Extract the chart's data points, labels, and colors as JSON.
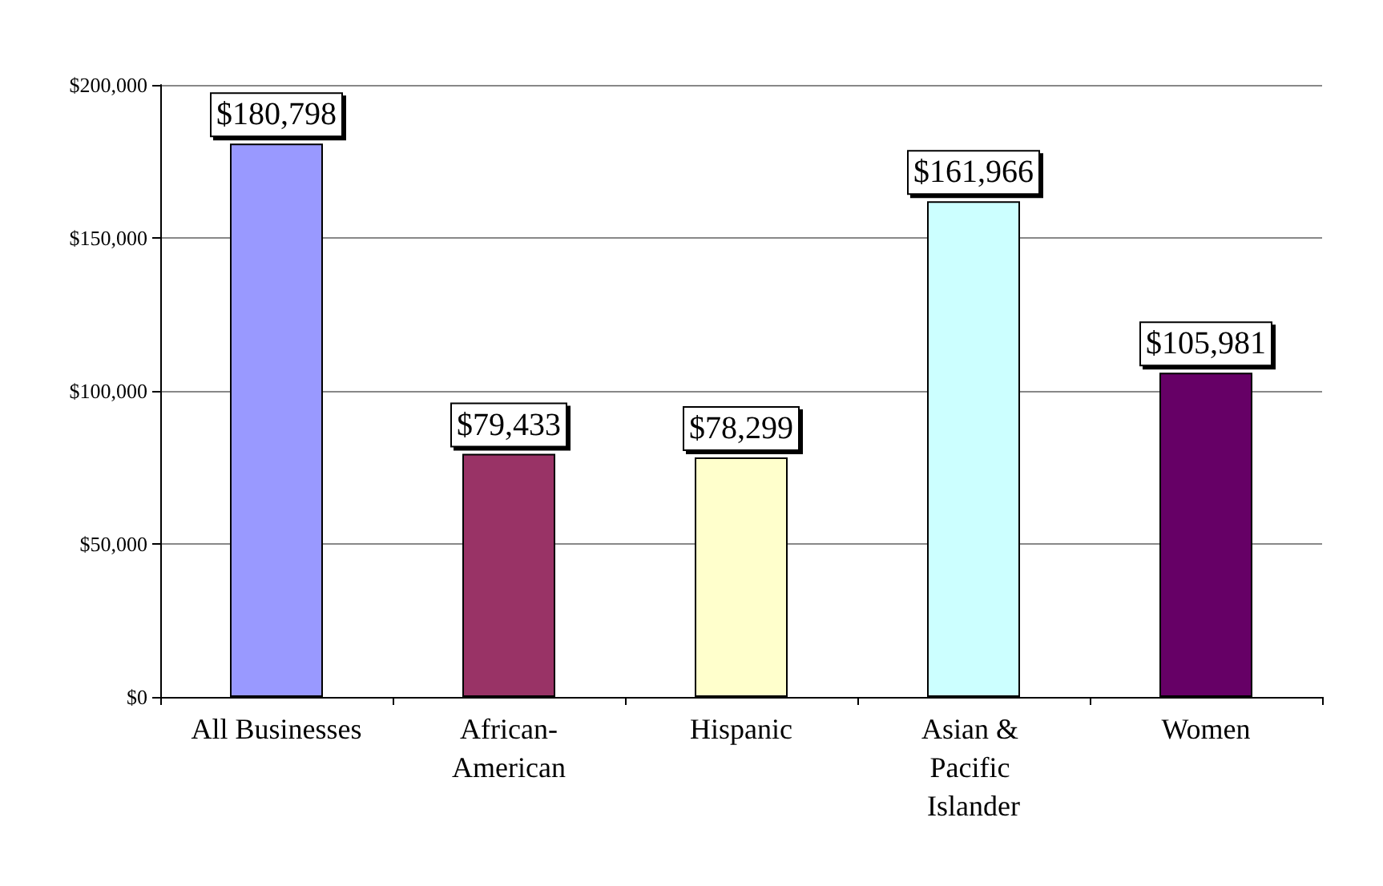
{
  "chart_data": {
    "type": "bar",
    "categories": [
      "All Businesses",
      "African-American",
      "Hispanic",
      "Asian & Pacific Islander",
      "Women"
    ],
    "values": [
      180798,
      79433,
      78299,
      161966,
      105981
    ],
    "colors": [
      "#9999ff",
      "#993366",
      "#ffffcc",
      "#ccffff",
      "#660066"
    ],
    "value_labels": [
      "$180,798",
      "$79,433",
      "$78,299",
      "$161,966",
      "$105,981"
    ],
    "ylim": [
      0,
      200000
    ],
    "yticks": [
      {
        "value": 0,
        "label": "$0"
      },
      {
        "value": 50000,
        "label": "$50,000"
      },
      {
        "value": 100000,
        "label": "$100,000"
      },
      {
        "value": 150000,
        "label": "$150,000"
      },
      {
        "value": 200000,
        "label": "$200,000"
      }
    ],
    "grid": "y"
  }
}
